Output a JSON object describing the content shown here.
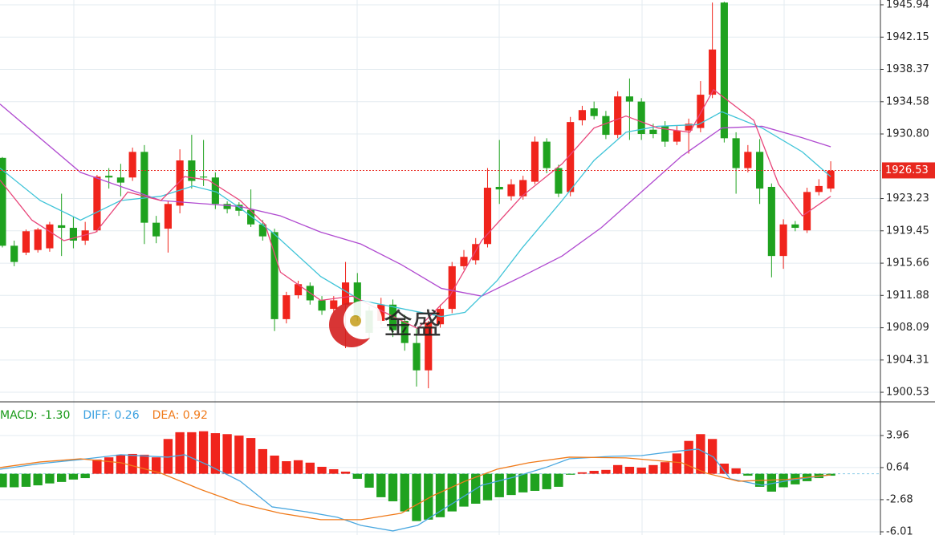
{
  "chart_data": [
    {
      "type": "candlestick",
      "xlim": [
        -0.2,
        74.2
      ],
      "ylim": [
        1899.5,
        1946.5
      ],
      "yticks": [
        1945.94,
        1942.15,
        1938.37,
        1934.58,
        {
          "value": 1930.8,
          "label": "1930.80"
        },
        1923.23,
        1919.45,
        1915.66,
        1911.88,
        1908.09,
        1904.31,
        1900.53
      ],
      "grid": true,
      "up_color": "#f0241c",
      "down_color": "#1fa21f",
      "open": [
        1928.0,
        1917.7,
        1916.9,
        1917.2,
        1917.4,
        1920.1,
        1919.8,
        1918.3,
        1919.5,
        1925.9,
        1925.7,
        1925.7,
        1928.7,
        1920.4,
        1919.7,
        1922.4,
        1927.7,
        1925.8,
        1925.7,
        1922.6,
        1922.5,
        1921.9,
        1920.2,
        1919.3,
        1909.1,
        1911.9,
        1913.0,
        1911.3,
        1910.3,
        1910.8,
        1913.4,
        1910.1,
        1908.9,
        1910.8,
        1908.9,
        1906.3,
        1903.1,
        1908.5,
        1910.3,
        1915.3,
        1916.0,
        1917.9,
        1924.6,
        1923.5,
        1923.5,
        1925.2,
        1929.9,
        1926.8,
        1924.0,
        1932.4,
        1933.8,
        1932.9,
        1930.7,
        1935.2,
        1934.6,
        1931.3,
        1931.7,
        1929.9,
        1931.2,
        1931.5,
        1935.4,
        1946.2,
        1930.3,
        1926.8,
        1928.7,
        1924.6,
        1916.5,
        1920.2,
        1919.5,
        1924.0,
        1924.4
      ],
      "high": [
        1928.1,
        1918.3,
        1919.6,
        1919.8,
        1920.5,
        1923.8,
        1921.1,
        1920.5,
        1926.0,
        1926.8,
        1927.3,
        1929.2,
        1929.5,
        1921.2,
        1923.0,
        1929.0,
        1930.7,
        1930.1,
        1926.3,
        1922.9,
        1922.8,
        1924.3,
        1920.7,
        1919.7,
        1912.3,
        1913.6,
        1913.4,
        1911.8,
        1911.8,
        1915.8,
        1914.5,
        1910.6,
        1911.6,
        1911.4,
        1909.6,
        1908.0,
        1908.9,
        1910.8,
        1915.8,
        1917.2,
        1918.6,
        1926.8,
        1930.1,
        1925.5,
        1925.9,
        1930.5,
        1930.3,
        1927.2,
        1932.8,
        1934.1,
        1934.6,
        1933.5,
        1935.8,
        1937.3,
        1935.0,
        1932.0,
        1932.3,
        1931.8,
        1932.6,
        1937.0,
        1946.2,
        1946.3,
        1931.0,
        1929.5,
        1930.2,
        1925.0,
        1920.8,
        1920.6,
        1924.5,
        1925.5,
        1927.6
      ],
      "low": [
        1917.5,
        1915.3,
        1916.6,
        1916.9,
        1917.0,
        1916.5,
        1917.4,
        1917.8,
        1919.3,
        1924.4,
        1923.5,
        1925.3,
        1917.9,
        1918.0,
        1916.9,
        1921.5,
        1924.4,
        1924.7,
        1922.0,
        1921.5,
        1921.2,
        1919.9,
        1918.3,
        1907.7,
        1908.6,
        1911.5,
        1910.8,
        1909.6,
        1909.9,
        1905.7,
        1908.9,
        1906.8,
        1908.5,
        1907.0,
        1905.4,
        1901.2,
        1901.0,
        1908.1,
        1909.8,
        1914.9,
        1915.5,
        1917.5,
        1922.6,
        1923.0,
        1923.1,
        1924.9,
        1926.2,
        1923.4,
        1923.5,
        1931.8,
        1932.5,
        1930.2,
        1930.3,
        1930.1,
        1930.1,
        1930.3,
        1929.3,
        1929.5,
        1928.5,
        1931.0,
        1935.0,
        1929.8,
        1923.8,
        1926.3,
        1922.6,
        1914.0,
        1915.0,
        1919.4,
        1919.2,
        1923.6,
        1924.0
      ],
      "close": [
        1917.7,
        1915.8,
        1919.4,
        1919.6,
        1920.2,
        1919.8,
        1918.3,
        1919.5,
        1925.8,
        1925.7,
        1925.1,
        1928.7,
        1920.4,
        1918.8,
        1922.6,
        1927.7,
        1925.3,
        1925.7,
        1922.6,
        1922.0,
        1921.8,
        1920.2,
        1918.8,
        1909.1,
        1911.9,
        1913.2,
        1911.3,
        1910.1,
        1911.3,
        1913.4,
        1909.4,
        1907.5,
        1910.8,
        1907.8,
        1906.3,
        1903.1,
        1908.7,
        1910.3,
        1915.3,
        1916.4,
        1917.9,
        1924.5,
        1924.3,
        1924.9,
        1925.4,
        1929.9,
        1926.8,
        1923.8,
        1932.2,
        1933.6,
        1932.9,
        1930.7,
        1935.2,
        1934.6,
        1930.8,
        1930.8,
        1929.9,
        1931.2,
        1932.0,
        1935.4,
        1940.7,
        1930.3,
        1926.8,
        1928.7,
        1924.4,
        1916.5,
        1920.2,
        1919.8,
        1924.0,
        1924.7,
        1926.5
      ],
      "lines": [
        {
          "color": "#b04ad0",
          "x": [
            -0.2,
            6.6,
            13.4,
            20.1,
            23.5,
            26.9,
            30.3,
            33.7,
            37.1,
            40.5,
            43.9,
            47.3,
            50.6,
            54.0,
            57.4,
            60.8,
            64.2,
            67.6,
            70.0
          ],
          "values": [
            1934.3,
            1926.3,
            1923.0,
            1922.3,
            1921.2,
            1919.3,
            1917.9,
            1915.5,
            1912.7,
            1911.8,
            1914.1,
            1916.5,
            1919.8,
            1924.0,
            1928.2,
            1931.5,
            1931.7,
            1930.35,
            1929.3
          ]
        },
        {
          "color": "#3fc4d8",
          "x": [
            -0.2,
            3.2,
            6.6,
            10.0,
            13.4,
            16.1,
            18.1,
            20.1,
            22.8,
            26.9,
            30.3,
            33.7,
            37.1,
            39.1,
            41.8,
            43.9,
            47.3,
            50.0,
            52.7,
            55.4,
            58.8,
            60.8,
            64.2,
            67.6,
            70.0
          ],
          "values": [
            1926.8,
            1923.0,
            1920.7,
            1923.0,
            1923.5,
            1924.7,
            1924.0,
            1922.1,
            1919.3,
            1914.1,
            1911.3,
            1910.35,
            1909.4,
            1909.9,
            1913.6,
            1917.4,
            1923.0,
            1927.7,
            1931.0,
            1931.7,
            1931.9,
            1933.4,
            1931.5,
            1928.7,
            1925.8
          ]
        },
        {
          "color": "#e8467a",
          "x": [
            -0.2,
            2.5,
            5.2,
            7.9,
            10.6,
            13.4,
            15.4,
            17.4,
            20.1,
            22.2,
            23.5,
            26.9,
            29.6,
            32.3,
            35.1,
            37.8,
            40.5,
            43.9,
            47.3,
            50.0,
            52.7,
            55.4,
            58.1,
            60.1,
            63.5,
            65.6,
            67.6,
            70.0
          ],
          "values": [
            1925.4,
            1920.7,
            1918.3,
            1919.3,
            1924.0,
            1923.0,
            1925.8,
            1925.4,
            1923.0,
            1920.2,
            1914.6,
            1911.3,
            1911.8,
            1909.9,
            1908.0,
            1911.8,
            1918.3,
            1923.5,
            1927.3,
            1931.5,
            1932.9,
            1931.5,
            1931.0,
            1936.0,
            1932.4,
            1924.9,
            1921.2,
            1923.5
          ]
        }
      ],
      "current_price": 1926.53,
      "current_price_color": "#e8281f"
    },
    {
      "type": "macd",
      "xlim": [
        -0.2,
        74.2
      ],
      "ylim": [
        -6.34,
        7.36
      ],
      "yticks": [
        3.96,
        0.64,
        -2.68,
        -6.01
      ],
      "indicator_labels": [
        {
          "text": "MACD: -1.30",
          "color": "#1a9a1a"
        },
        {
          "text": "DIFF: 0.26",
          "color": "#3aa0e0"
        },
        {
          "text": "DEA: 0.92",
          "color": "#f07a1a"
        }
      ],
      "up_color": "#f0241c",
      "down_color": "#1fa21f",
      "values": [
        -1.4,
        -1.4,
        -1.35,
        -1.2,
        -1.0,
        -0.85,
        -0.6,
        -0.45,
        1.47,
        1.7,
        1.97,
        2.05,
        1.97,
        1.7,
        3.6,
        4.3,
        4.3,
        4.4,
        4.2,
        4.1,
        3.95,
        3.7,
        2.55,
        1.88,
        1.3,
        1.4,
        1.15,
        0.72,
        0.47,
        0.22,
        -0.52,
        -1.44,
        -2.43,
        -2.85,
        -3.9,
        -4.9,
        -4.75,
        -4.5,
        -3.9,
        -3.4,
        -3.1,
        -2.75,
        -2.43,
        -2.2,
        -1.93,
        -1.77,
        -1.6,
        -1.35,
        -0.1,
        0.15,
        0.3,
        0.4,
        0.9,
        0.72,
        0.64,
        0.9,
        1.2,
        2.1,
        3.4,
        4.1,
        3.6,
        1.05,
        0.56,
        -0.2,
        -1.35,
        -1.85,
        -1.4,
        -1.1,
        -0.77,
        -0.45,
        -0.2
      ],
      "lines": [
        {
          "color": "#4aa8e0",
          "x": [
            -0.2,
            3.2,
            6.6,
            10.0,
            14.0,
            15.4,
            17.4,
            20.1,
            22.8,
            25.6,
            28.3,
            30.3,
            33.0,
            35.1,
            37.8,
            40.5,
            43.2,
            45.9,
            47.9,
            51.3,
            54.0,
            56.7,
            58.8,
            60.1,
            61.5,
            64.2,
            66.9,
            70.0
          ],
          "values": [
            0.47,
            1.05,
            1.47,
            1.97,
            1.72,
            1.97,
            0.89,
            -0.77,
            -3.43,
            -3.92,
            -4.5,
            -5.34,
            -5.92,
            -5.34,
            -3.26,
            -1.19,
            -0.36,
            0.64,
            1.55,
            1.8,
            1.88,
            2.3,
            2.55,
            1.72,
            -0.52,
            -1.19,
            -0.6,
            -0.11
          ]
        },
        {
          "color": "#f07a1a",
          "x": [
            -0.2,
            3.2,
            6.6,
            10.0,
            13.4,
            16.7,
            20.1,
            23.5,
            26.9,
            30.3,
            33.7,
            36.4,
            39.1,
            41.8,
            44.5,
            47.9,
            52.7,
            57.4,
            59.5,
            62.2,
            66.2,
            70.0
          ],
          "values": [
            0.64,
            1.22,
            1.55,
            1.14,
            0.06,
            -1.6,
            -3.1,
            -4.09,
            -4.75,
            -4.75,
            -4.09,
            -2.26,
            -0.77,
            0.47,
            1.14,
            1.72,
            1.64,
            1.14,
            0.06,
            -0.77,
            -0.6,
            -0.11
          ]
        }
      ]
    }
  ],
  "watermark": "金盛"
}
